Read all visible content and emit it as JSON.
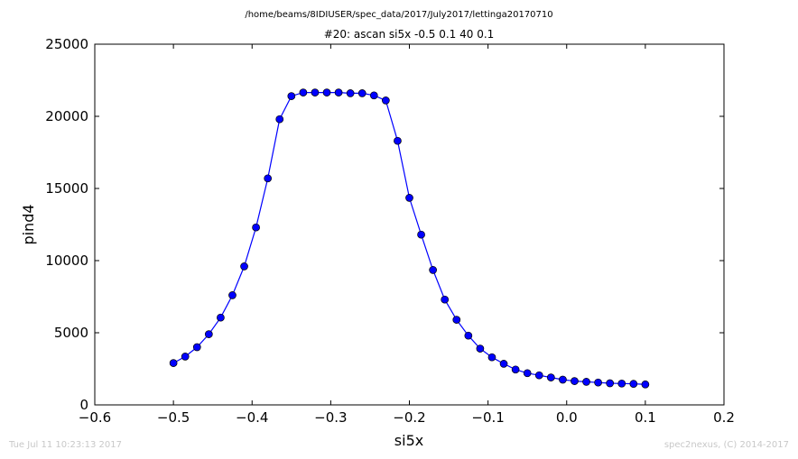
{
  "chart_data": {
    "type": "line",
    "suptitle": "/home/beams/8IDIUSER/spec_data/2017/July2017/lettinga20170710",
    "title": "#20: ascan  si5x -0.5 0.1  40 0.1",
    "xlabel": "si5x",
    "ylabel": "pind4",
    "xlim": [
      -0.6,
      0.2
    ],
    "ylim": [
      0,
      25000
    ],
    "xticks": [
      -0.6,
      -0.5,
      -0.4,
      -0.3,
      -0.2,
      -0.1,
      0.0,
      0.1,
      0.2
    ],
    "xtick_labels": [
      "−0.6",
      "−0.5",
      "−0.4",
      "−0.3",
      "−0.2",
      "−0.1",
      "0.0",
      "0.1",
      "0.2"
    ],
    "yticks": [
      0,
      5000,
      10000,
      15000,
      20000,
      25000
    ],
    "ytick_labels": [
      "0",
      "5000",
      "10000",
      "15000",
      "20000",
      "25000"
    ],
    "grid": false,
    "series": [
      {
        "color": "#0000ff",
        "marker": "circle",
        "x": [
          -0.5,
          -0.485,
          -0.47,
          -0.455,
          -0.44,
          -0.425,
          -0.41,
          -0.395,
          -0.38,
          -0.365,
          -0.35,
          -0.335,
          -0.32,
          -0.305,
          -0.29,
          -0.275,
          -0.26,
          -0.245,
          -0.23,
          -0.215,
          -0.2,
          -0.185,
          -0.17,
          -0.155,
          -0.14,
          -0.125,
          -0.11,
          -0.095,
          -0.08,
          -0.065,
          -0.05,
          -0.035,
          -0.02,
          -0.005,
          0.01,
          0.025,
          0.04,
          0.055,
          0.07,
          0.085,
          0.1
        ],
        "y": [
          2900,
          3350,
          4000,
          4900,
          6050,
          7600,
          9600,
          12300,
          15700,
          19800,
          21400,
          21650,
          21650,
          21650,
          21650,
          21600,
          21600,
          21450,
          21100,
          18300,
          14350,
          11800,
          9350,
          7300,
          5900,
          4800,
          3900,
          3300,
          2850,
          2450,
          2200,
          2050,
          1900,
          1750,
          1650,
          1600,
          1550,
          1500,
          1480,
          1460,
          1420
        ]
      }
    ]
  },
  "footer": {
    "left": "Tue Jul 11 10:23:13 2017",
    "right": "spec2nexus, (C) 2014-2017"
  }
}
